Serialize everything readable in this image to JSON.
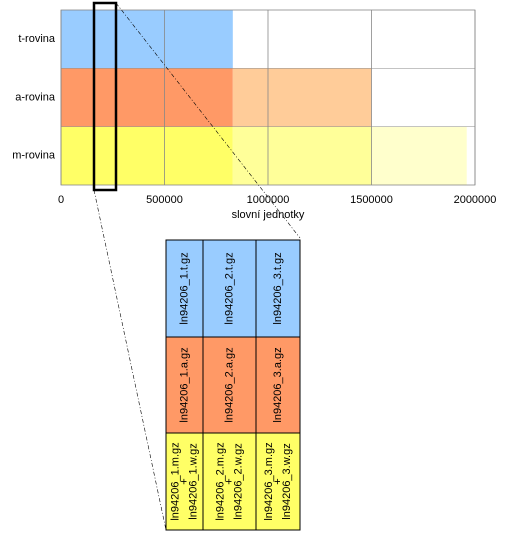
{
  "chart_data": {
    "type": "stacked-bar",
    "orientation": "horizontal",
    "categories": [
      "t-rovina",
      "a-rovina",
      "m-rovina"
    ],
    "series": [
      {
        "colors": [
          "#99ccff",
          "#ff9966",
          "#ffff66"
        ],
        "values": [
          830000,
          830000,
          830000
        ]
      },
      {
        "colors": [
          null,
          "#ffcc99",
          "#ffff99"
        ],
        "values": [
          null,
          670000,
          670000
        ]
      },
      {
        "colors": [
          null,
          null,
          "#ffffcc"
        ],
        "values": [
          null,
          null,
          460000
        ]
      }
    ],
    "xlim": [
      0,
      2000000
    ],
    "xticks": [
      0,
      500000,
      1000000,
      1500000,
      2000000
    ],
    "xlabel": "slovní jednotky",
    "grid": true
  },
  "detail": {
    "colors": [
      "#99ccff",
      "#ff9966",
      "#ffff66"
    ],
    "rows": [
      [
        [
          "ln94206_1.t.gz"
        ],
        [
          "ln94206_2.t.gz"
        ],
        [
          "ln94206_3.t.gz"
        ]
      ],
      [
        [
          "ln94206_1.a.gz"
        ],
        [
          "ln94206_2.a.gz"
        ],
        [
          "ln94206_3.a.gz"
        ]
      ],
      [
        [
          "ln94206_1.m.gz",
          "+",
          "ln94206_1.w.gz"
        ],
        [
          "ln94206_2.m.gz",
          "+",
          "ln94206_2.w.gz"
        ],
        [
          "ln94206_3.m.gz",
          "+",
          "ln94206_3.w.gz"
        ]
      ]
    ]
  }
}
